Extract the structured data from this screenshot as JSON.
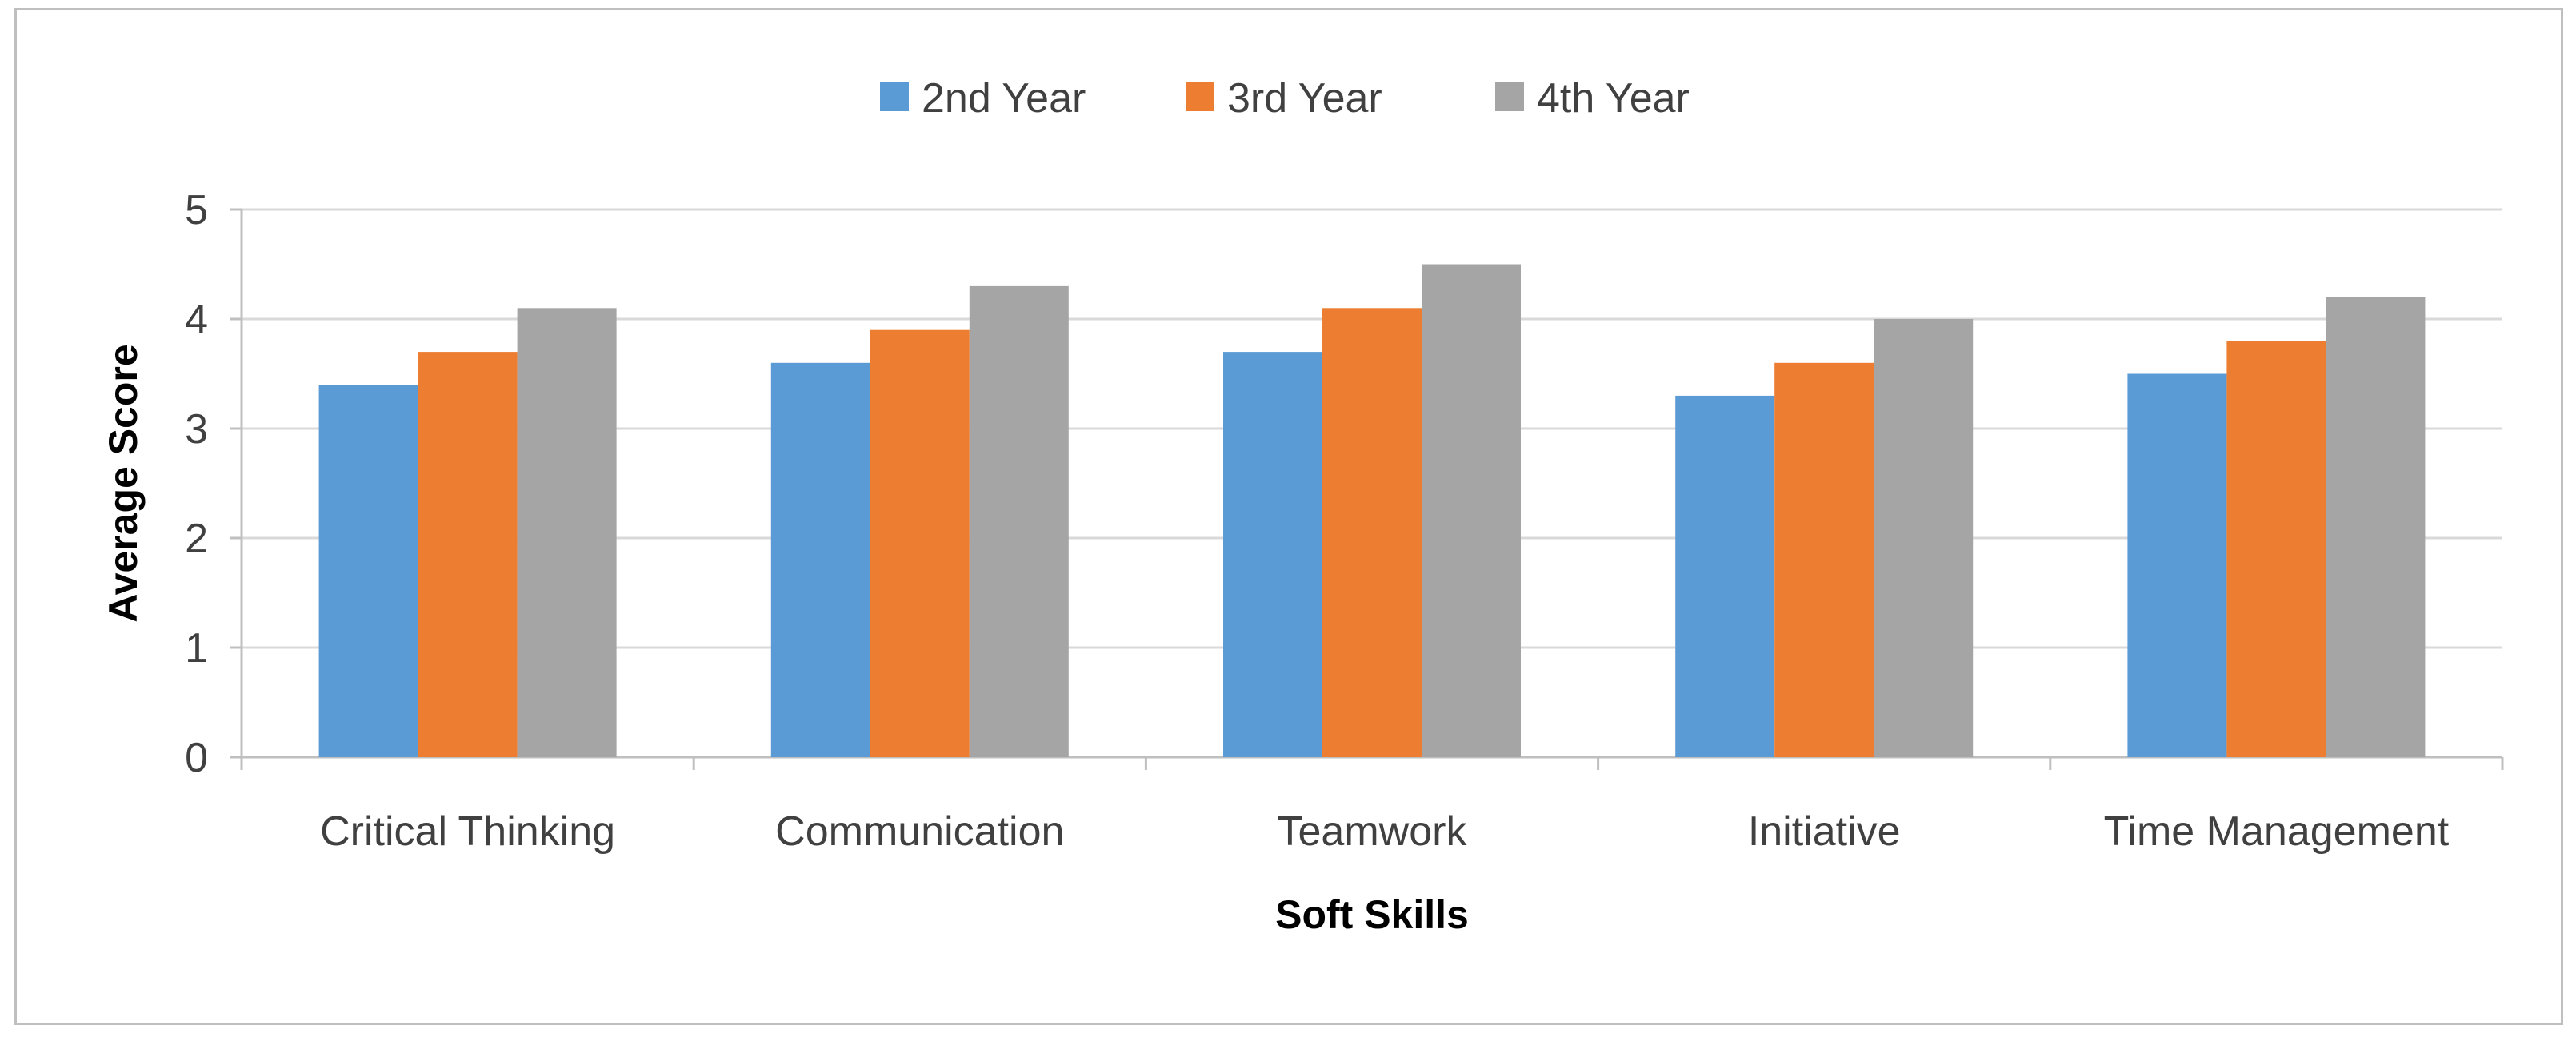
{
  "chart_data": {
    "type": "bar",
    "categories": [
      "Critical Thinking",
      "Communication",
      "Teamwork",
      "Initiative",
      "Time Management"
    ],
    "series": [
      {
        "name": "2nd Year",
        "color": "#5b9bd5",
        "values": [
          3.4,
          3.6,
          3.7,
          3.3,
          3.5
        ]
      },
      {
        "name": "3rd Year",
        "color": "#ed7d31",
        "values": [
          3.7,
          3.9,
          4.1,
          3.6,
          3.8
        ]
      },
      {
        "name": "4th Year",
        "color": "#a5a5a5",
        "values": [
          4.1,
          4.3,
          4.5,
          4.0,
          4.2
        ]
      }
    ],
    "title": "",
    "xlabel": "Soft Skills",
    "ylabel": "Average Score",
    "ylim": [
      0,
      5
    ],
    "yticks": [
      0,
      1,
      2,
      3,
      4,
      5
    ],
    "grid": true,
    "legend_position": "top-center",
    "gridline_color": "#d9d9d9",
    "axis_color": "#bfbfbf"
  }
}
